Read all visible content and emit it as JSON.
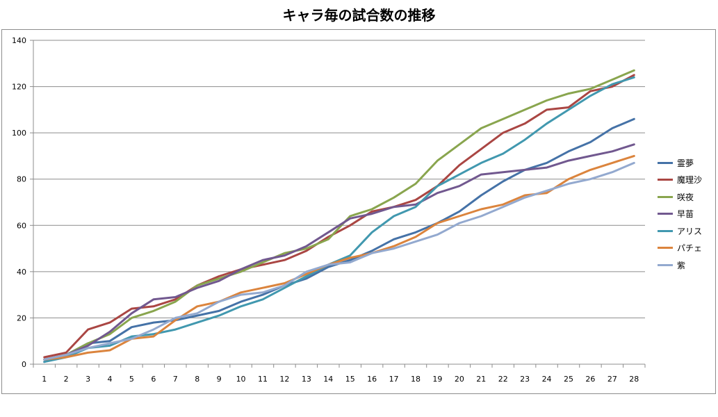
{
  "chart_data": {
    "type": "line",
    "title": "キャラ毎の試合数の推移",
    "xlabel": "",
    "ylabel": "",
    "x": [
      1,
      2,
      3,
      4,
      5,
      6,
      7,
      8,
      9,
      10,
      11,
      12,
      13,
      14,
      15,
      16,
      17,
      18,
      19,
      20,
      21,
      22,
      23,
      24,
      25,
      26,
      27,
      28
    ],
    "x_tick_labels": [
      "1",
      "2",
      "3",
      "4",
      "5",
      "6",
      "7",
      "8",
      "9",
      "10",
      "11",
      "12",
      "13",
      "14",
      "15",
      "16",
      "17",
      "18",
      "19",
      "20",
      "21",
      "22",
      "23",
      "24",
      "25",
      "26",
      "27",
      "28"
    ],
    "ylim": [
      0,
      140
    ],
    "y_ticks": [
      0,
      20,
      40,
      60,
      80,
      100,
      120,
      140
    ],
    "y_tick_labels": [
      "0",
      "20",
      "40",
      "60",
      "80",
      "100",
      "120",
      "140"
    ],
    "grid": "horizontal",
    "legend_position": "right",
    "series": [
      {
        "name": "霊夢",
        "color": "#4572a7",
        "values": [
          1,
          4,
          9,
          10,
          16,
          18,
          19,
          21,
          23,
          27,
          30,
          34,
          37,
          42,
          45,
          49,
          54,
          57,
          61,
          66,
          73,
          79,
          84,
          87,
          92,
          96,
          102,
          106
        ]
      },
      {
        "name": "魔理沙",
        "color": "#aa4643",
        "values": [
          3,
          5,
          15,
          18,
          24,
          25,
          28,
          34,
          38,
          41,
          43,
          45,
          49,
          55,
          60,
          66,
          68,
          71,
          77,
          86,
          93,
          100,
          104,
          110,
          111,
          118,
          120,
          125
        ]
      },
      {
        "name": "咲夜",
        "color": "#89a54e",
        "values": [
          2,
          4,
          9,
          13,
          20,
          23,
          27,
          34,
          37,
          40,
          44,
          48,
          50,
          54,
          64,
          67,
          72,
          78,
          88,
          95,
          102,
          106,
          110,
          114,
          117,
          119,
          123,
          127
        ]
      },
      {
        "name": "早苗",
        "color": "#71588f",
        "values": [
          2,
          4,
          8,
          14,
          22,
          28,
          29,
          33,
          36,
          41,
          45,
          47,
          51,
          57,
          63,
          65,
          68,
          69,
          74,
          77,
          82,
          83,
          84,
          85,
          88,
          90,
          92,
          95
        ]
      },
      {
        "name": "アリス",
        "color": "#4198af",
        "values": [
          1,
          3,
          7,
          8,
          12,
          13,
          15,
          18,
          21,
          25,
          28,
          33,
          38,
          43,
          47,
          57,
          64,
          68,
          77,
          82,
          87,
          91,
          97,
          104,
          110,
          116,
          121,
          124
        ]
      },
      {
        "name": "パチェ",
        "color": "#db843d",
        "values": [
          2,
          3,
          5,
          6,
          11,
          12,
          19,
          25,
          27,
          31,
          33,
          35,
          39,
          43,
          46,
          48,
          51,
          55,
          61,
          64,
          67,
          69,
          73,
          74,
          80,
          84,
          87,
          90
        ]
      },
      {
        "name": "紫",
        "color": "#93a9cf",
        "values": [
          2,
          4,
          7,
          9,
          11,
          15,
          20,
          22,
          27,
          30,
          31,
          34,
          40,
          43,
          44,
          48,
          50,
          53,
          56,
          61,
          64,
          68,
          72,
          75,
          78,
          80,
          83,
          87
        ]
      }
    ]
  }
}
